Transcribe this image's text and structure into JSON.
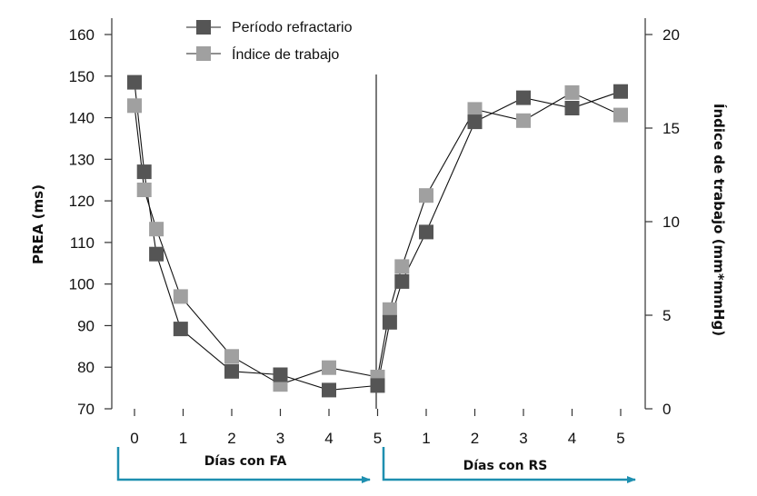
{
  "chart_data": {
    "type": "line",
    "ylabel_left": "PREA (ms)",
    "ylabel_right": "Índice de trabajo (mm*mmHg)",
    "ylim_left": [
      70,
      160
    ],
    "yticks_left": [
      70,
      80,
      90,
      100,
      110,
      120,
      130,
      140,
      150,
      160
    ],
    "ylim_right": [
      0,
      20
    ],
    "yticks_right": [
      0,
      5,
      10,
      15,
      20
    ],
    "x_tick_labels": [
      "0",
      "1",
      "2",
      "3",
      "4",
      "5",
      "1",
      "2",
      "3",
      "4",
      "5"
    ],
    "phases": [
      {
        "label": "Días con FA",
        "range": [
          0,
          5
        ]
      },
      {
        "label": "Días con RS",
        "range": [
          5,
          10
        ]
      }
    ],
    "legend_position": "top-center",
    "grid": false,
    "series": [
      {
        "name": "Período refractario",
        "axis": "left",
        "color": "#555555",
        "segments": [
          [
            [
              0,
              148.5
            ],
            [
              0.2,
              127
            ],
            [
              0.45,
              107.2
            ],
            [
              0.95,
              89.2
            ],
            [
              2,
              79
            ],
            [
              3,
              78.2
            ],
            [
              4,
              74.5
            ],
            [
              5,
              75.6
            ]
          ],
          [
            [
              5.25,
              90.8
            ],
            [
              5.5,
              100.6
            ],
            [
              6,
              112.5
            ],
            [
              7,
              139
            ],
            [
              8,
              144.8
            ],
            [
              9,
              142.3
            ],
            [
              10,
              146.3
            ]
          ]
        ]
      },
      {
        "name": "Índice de trabajo",
        "axis": "right",
        "color": "#a0a0a0",
        "segments": [
          [
            [
              0,
              16.2
            ],
            [
              0.2,
              11.7
            ],
            [
              0.45,
              9.6
            ],
            [
              0.95,
              6.0
            ],
            [
              2,
              2.8
            ],
            [
              3,
              1.3
            ],
            [
              4,
              2.2
            ],
            [
              5,
              1.7
            ]
          ],
          [
            [
              5.25,
              5.3
            ],
            [
              5.5,
              7.6
            ],
            [
              6,
              11.4
            ],
            [
              7,
              16.0
            ],
            [
              8,
              15.4
            ],
            [
              9,
              16.9
            ],
            [
              10,
              15.7
            ]
          ]
        ]
      }
    ]
  }
}
